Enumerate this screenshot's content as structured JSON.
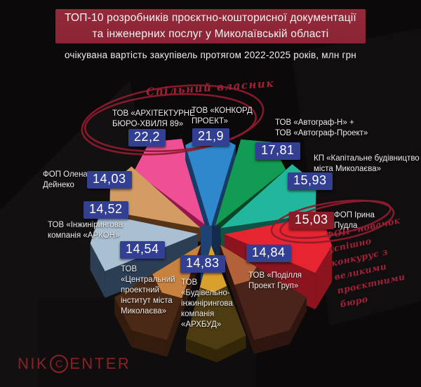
{
  "header": {
    "banner_color": "#93293a",
    "title_lines": [
      "ТОП-10 розробників проєктно-кошторисної документації",
      "та інженерних послуг у Миколаївській області"
    ],
    "subtitle": "очікувана вартість закупівель протягом 2022-2025 років, млн грн"
  },
  "annotations": {
    "ink_color": "#8e1b2e",
    "common_owner": "Спільний власник",
    "newcomer_note_lines": [
      "ФОП -новачок успішно",
      "конкурує з великими",
      "проєктними бюро"
    ]
  },
  "logo": {
    "prefix": "NIK",
    "circled_letter": "C",
    "suffix": "ENTER",
    "color": "#8b2127"
  },
  "badge": {
    "default_color": "#323f92",
    "text_color": "#ffffff"
  },
  "chart_data": {
    "type": "pie",
    "title": "ТОП-10 розробників проєктно-кошторисної документації та інженерних послуг у Миколаївській області",
    "value_label": "очікувана вартість закупівель протягом 2022-2025 років",
    "unit": "млн грн",
    "legend_position": "labels-around-rosette",
    "items": [
      {
        "label": "ТОВ «АРХІТЕКТУРНЕ БЮРО-ХВИЛЯ 89»",
        "label_lines": [
          "ТОВ «АРХІТЕКТУРНЕ",
          "БЮРО-ХВИЛЯ 89»"
        ],
        "value": 22.2,
        "display_value": "22,2",
        "top_color": "#ef4f95",
        "side_color": "#93174a"
      },
      {
        "label": "ТОВ «КОНКОРД ПРОЕКТ»",
        "label_lines": [
          "ТОВ «КОНКОРД",
          "ПРОЕКТ»"
        ],
        "value": 21.9,
        "display_value": "21,9",
        "top_color": "#2f88cc",
        "side_color": "#1a3a66"
      },
      {
        "label": "ТОВ «Автограф-Н» + ТОВ «Автограф-Проект»",
        "label_lines": [
          "ТОВ «Автограф-Н» +",
          "ТОВ «Автограф-Проект»"
        ],
        "value": 17.81,
        "display_value": "17,81",
        "top_color": "#129b52",
        "side_color": "#0a4527"
      },
      {
        "label": "КП «Капітальне будівництво міста Миколаєва»",
        "label_lines": [
          "КП «Капітальне будівництво",
          "міста Миколаєва»"
        ],
        "value": 15.93,
        "display_value": "15,93",
        "top_color": "#20b79c",
        "side_color": "#0d5347"
      },
      {
        "label": "ФОП Ірина Пудла",
        "label_lines": [
          "ФОП Ірина",
          "Пудла"
        ],
        "value": 15.03,
        "display_value": "15,03",
        "top_color": "#e62530",
        "side_color": "#8c141f",
        "badge_color": "#8c1b28"
      },
      {
        "label": "ТОВ «Поділля Проект Груп»",
        "label_lines": [
          "ТОВ «Поділля",
          "Проект Груп»"
        ],
        "value": 14.84,
        "display_value": "14,84",
        "top_color": "#4a241b",
        "side_color": "#2e1510",
        "tip_color": "#b2613a"
      },
      {
        "label": "ТОВ «Будівельно-інжинірингова компанія «АРХБУД»",
        "label_lines": [
          "ТОВ",
          "«Будівельно-",
          "інжинірингова",
          "компанія",
          "«АРХБУД»"
        ],
        "value": 14.83,
        "display_value": "14,83",
        "top_color": "#4d3b12",
        "side_color": "#332708",
        "tip_color": "#d9a02b"
      },
      {
        "label": "ТОВ «Центральний проектний інститут міста Миколаєва»",
        "label_lines": [
          "ТОВ",
          "«Центральний",
          "проектний",
          "інститут міста",
          "Миколаєва»"
        ],
        "value": 14.54,
        "display_value": "14,54",
        "top_color": "#4a2a16",
        "side_color": "#331c0e",
        "tip_color": "#c8823f"
      },
      {
        "label": "ТОВ «Інжинірингова компанія «АРКОН»",
        "label_lines": [
          "ТОВ «Інжинірингова",
          "компанія «АРКОН»"
        ],
        "value": 14.52,
        "display_value": "14,52",
        "top_color": "#a9bfd2",
        "side_color": "#2c3e54"
      },
      {
        "label": "ФОП Олена Дейнеко",
        "label_lines": [
          "ФОП Олена",
          "Дейнеко"
        ],
        "value": 14.03,
        "display_value": "14,03",
        "top_color": "#d39c63",
        "side_color": "#543317"
      }
    ]
  }
}
